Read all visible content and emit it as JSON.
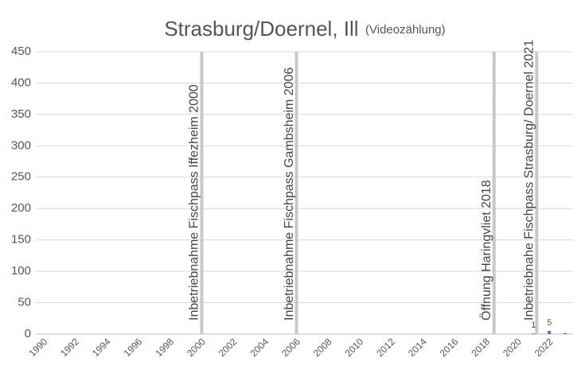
{
  "chart_data": {
    "type": "bar",
    "title": "Strasburg/Doernel, Ill",
    "subtitle": "(Videozählung)",
    "categories": [
      "1990",
      null,
      "1992",
      null,
      "1994",
      null,
      "1996",
      null,
      "1998",
      null,
      "2000",
      null,
      "2002",
      null,
      "2004",
      null,
      "2006",
      null,
      "2008",
      null,
      "2010",
      null,
      "2012",
      null,
      "2014",
      null,
      "2016",
      null,
      "2018",
      null,
      "2020",
      null,
      "2022",
      null
    ],
    "values": [
      null,
      null,
      null,
      null,
      null,
      null,
      null,
      null,
      null,
      null,
      null,
      null,
      null,
      null,
      null,
      null,
      null,
      null,
      null,
      null,
      null,
      null,
      null,
      null,
      null,
      null,
      null,
      null,
      null,
      null,
      null,
      1,
      5,
      0
    ],
    "color": "#4472c4",
    "ylim": [
      0,
      450
    ],
    "yticks": [
      0,
      50,
      100,
      150,
      200,
      250,
      300,
      350,
      400,
      450
    ],
    "grid": true,
    "annotations": [
      {
        "text": "Inbetriebnahme Fischpass Iffezheim 2000",
        "x": 2000
      },
      {
        "text": "Inbetriebnahme Fischpass Gambsheim 2006",
        "x": 2006
      },
      {
        "text": "Öffnung Haringvliet 2018",
        "x": 2018.5
      },
      {
        "text": "Inbetriebnahe Fischpass Strasburg/ Doernel 2021",
        "x": 2021.2
      }
    ]
  }
}
